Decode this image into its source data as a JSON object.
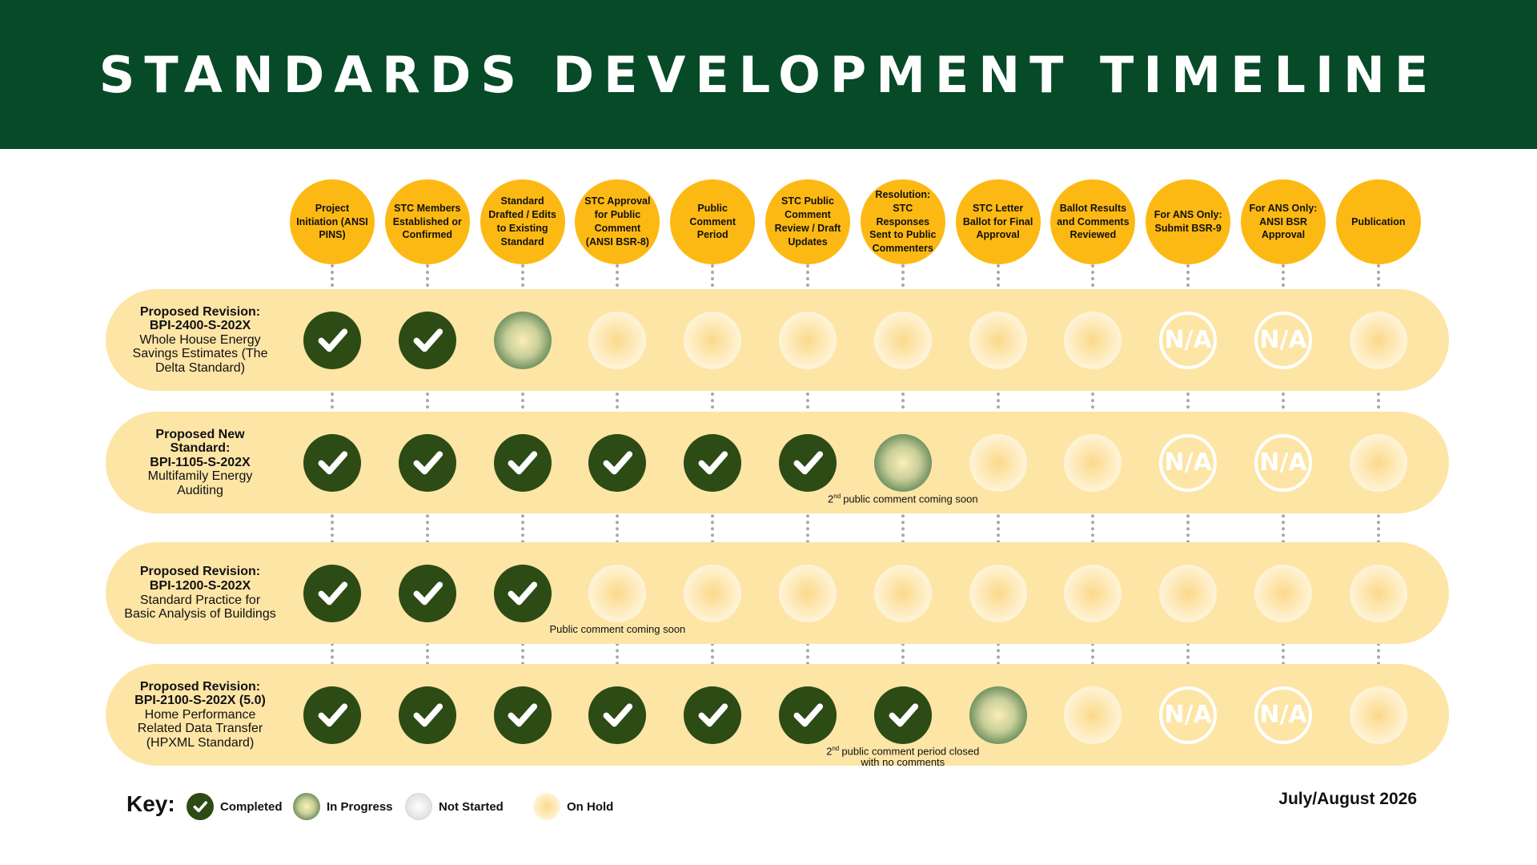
{
  "header": {
    "title": "STANDARDS DEVELOPMENT TIMELINE"
  },
  "stages": [
    "Project Initiation (ANSI PINS)",
    "STC Members Established or Confirmed",
    "Standard Drafted / Edits to Existing Standard",
    "STC Approval for Public Comment (ANSI BSR-8)",
    "Public Comment Period",
    "STC Public Comment Review / Draft Updates",
    "Resolution: STC Responses Sent to Public Commenters",
    "STC Letter Ballot for Final Approval",
    "Ballot Results and Comments Reviewed",
    "For ANS Only: Submit BSR-9",
    "For ANS Only: ANSI BSR Approval",
    "Publication"
  ],
  "na_label": "N/A",
  "rows": [
    {
      "kind": "Proposed Revision:",
      "code": "BPI-2400-S-202X",
      "description": "Whole House Energy Savings Estimates (The Delta Standard)",
      "statuses": [
        "completed",
        "completed",
        "in-progress",
        "on-hold",
        "on-hold",
        "on-hold",
        "on-hold",
        "on-hold",
        "on-hold",
        "na",
        "na",
        "on-hold"
      ]
    },
    {
      "kind": "Proposed New Standard:",
      "code": "BPI-1105-S-202X",
      "description": "Multifamily Energy Auditing",
      "statuses": [
        "completed",
        "completed",
        "completed",
        "completed",
        "completed",
        "completed",
        "in-progress",
        "on-hold",
        "on-hold",
        "na",
        "na",
        "on-hold"
      ],
      "note": {
        "stage": 6,
        "lead": "2",
        "sup": "nd",
        "text": "public comment coming soon"
      }
    },
    {
      "kind": "Proposed Revision:",
      "code": "BPI-1200-S-202X",
      "description": "Standard Practice for Basic Analysis of Buildings",
      "statuses": [
        "completed",
        "completed",
        "completed",
        "on-hold",
        "on-hold",
        "on-hold",
        "on-hold",
        "on-hold",
        "on-hold",
        "on-hold",
        "on-hold",
        "on-hold"
      ],
      "note": {
        "stage": 3,
        "text": "Public comment coming soon"
      }
    },
    {
      "kind": "Proposed Revision:",
      "code": "BPI-2100-S-202X (5.0)",
      "description": "Home Performance Related Data Transfer (HPXML Standard)",
      "statuses": [
        "completed",
        "completed",
        "completed",
        "completed",
        "completed",
        "completed",
        "completed",
        "in-progress",
        "on-hold",
        "na",
        "na",
        "on-hold"
      ],
      "note": {
        "stage": 6,
        "lead": "2",
        "sup": "nd",
        "text": "public comment period closed with no comments"
      }
    }
  ],
  "key": {
    "title": "Key:",
    "items": [
      {
        "status": "completed",
        "label": "Completed"
      },
      {
        "status": "in-progress",
        "label": "In Progress"
      },
      {
        "status": "not-started",
        "label": "Not Started"
      },
      {
        "status": "on-hold",
        "label": "On Hold"
      }
    ]
  },
  "date": "July/August 2026"
}
